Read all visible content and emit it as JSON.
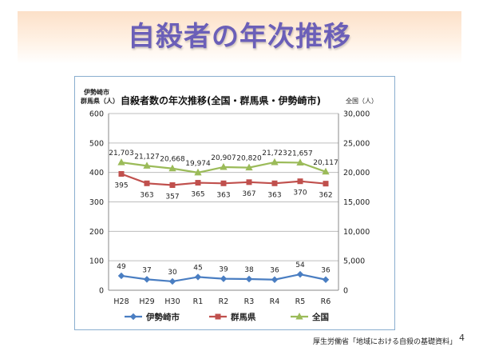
{
  "slide": {
    "title": "自殺者の年次推移",
    "source": "厚生労働省「地域における自殺の基礎資料」",
    "page_number": "4"
  },
  "chart_data": {
    "type": "line",
    "title": "自殺者数の年次推移(全国・群馬県・伊勢崎市)",
    "left_axis_label_1": "伊勢崎市",
    "left_axis_label_2": "群馬県（人）",
    "right_axis_label": "全国（人）",
    "categories": [
      "H28",
      "H29",
      "H30",
      "R1",
      "R2",
      "R3",
      "R4",
      "R5",
      "R6"
    ],
    "y_left": {
      "min": 0,
      "max": 600,
      "ticks": [
        "0",
        "100",
        "200",
        "300",
        "400",
        "500",
        "600"
      ]
    },
    "y_right": {
      "min": 0,
      "max": 30000,
      "ticks": [
        "0",
        "5,000",
        "10,000",
        "15,000",
        "20,000",
        "25,000",
        "30,000"
      ]
    },
    "series": [
      {
        "name": "伊勢崎市",
        "axis": "left",
        "color": "#4a7ec2",
        "marker": "diamond",
        "values": [
          49,
          37,
          30,
          45,
          39,
          38,
          36,
          54,
          36
        ],
        "labels": [
          "49",
          "37",
          "30",
          "45",
          "39",
          "38",
          "36",
          "54",
          "36"
        ]
      },
      {
        "name": "群馬県",
        "axis": "left",
        "color": "#c0504d",
        "marker": "square",
        "values": [
          395,
          363,
          357,
          365,
          363,
          367,
          363,
          370,
          362
        ],
        "labels": [
          "395",
          "363",
          "357",
          "365",
          "363",
          "367",
          "363",
          "370",
          "362"
        ]
      },
      {
        "name": "全国",
        "axis": "right",
        "color": "#9bbb59",
        "marker": "triangle",
        "values": [
          21703,
          21127,
          20668,
          19974,
          20907,
          20820,
          21723,
          21657,
          20117
        ],
        "labels": [
          "21,703",
          "21,127",
          "20,668",
          "19,974",
          "20,907",
          "20,820",
          "21,723",
          "21,657",
          "20,117"
        ]
      }
    ],
    "legend_position": "bottom"
  }
}
